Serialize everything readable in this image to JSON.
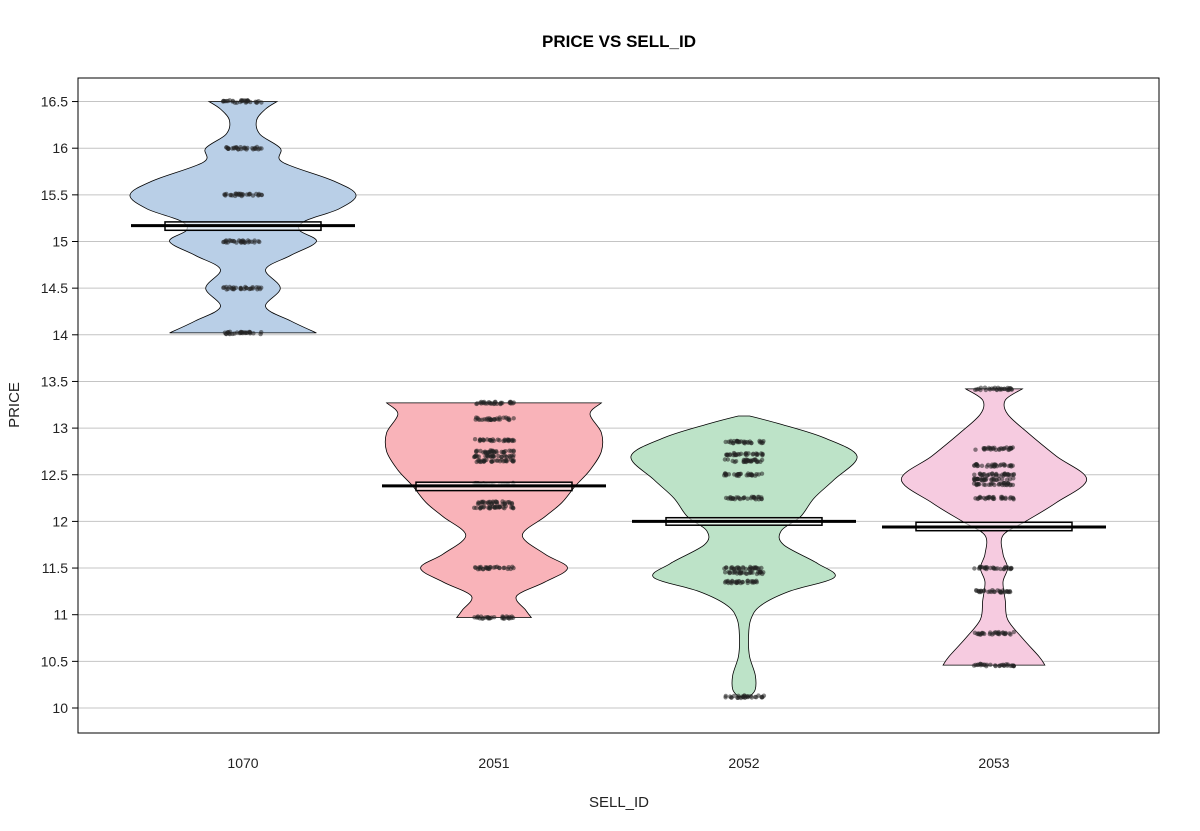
{
  "chart_data": {
    "type": "pirateplot",
    "title": "PRICE VS SELL_ID",
    "xlabel": "SELL_ID",
    "ylabel": "PRICE",
    "categories": [
      "1070",
      "2051",
      "2052",
      "2053"
    ],
    "ylim": [
      9.75,
      16.75
    ],
    "yticks": [
      10,
      10.5,
      11,
      11.5,
      12,
      12.5,
      13,
      13.5,
      14,
      14.5,
      15,
      15.5,
      16,
      16.5
    ],
    "grid": true,
    "colors": {
      "1070": "#b9cfe7",
      "2051": "#f9b3b9",
      "2052": "#bde3c8",
      "2053": "#f6cbe0"
    },
    "groups": [
      {
        "category": "1070",
        "mean": 15.17,
        "ci": [
          15.12,
          15.21
        ],
        "min": 14.02,
        "max": 16.5,
        "price_levels": [
          14.02,
          14.5,
          15.0,
          15.5,
          16.0,
          16.5
        ],
        "density": [
          [
            14.02,
            0.65
          ],
          [
            14.15,
            0.42
          ],
          [
            14.3,
            0.2
          ],
          [
            14.5,
            0.33
          ],
          [
            14.7,
            0.2
          ],
          [
            14.85,
            0.42
          ],
          [
            15.0,
            0.65
          ],
          [
            15.12,
            0.5
          ],
          [
            15.22,
            0.55
          ],
          [
            15.35,
            0.85
          ],
          [
            15.5,
            1.0
          ],
          [
            15.65,
            0.8
          ],
          [
            15.85,
            0.35
          ],
          [
            16.0,
            0.33
          ],
          [
            16.15,
            0.15
          ],
          [
            16.3,
            0.12
          ],
          [
            16.42,
            0.2
          ],
          [
            16.5,
            0.3
          ]
        ]
      },
      {
        "category": "2051",
        "mean": 12.38,
        "ci": [
          12.33,
          12.42
        ],
        "min": 10.97,
        "max": 13.27,
        "price_levels": [
          10.97,
          11.5,
          12.15,
          12.2,
          12.4,
          12.65,
          12.7,
          12.75,
          12.87,
          13.1,
          13.27
        ],
        "density": [
          [
            10.97,
            0.33
          ],
          [
            11.05,
            0.28
          ],
          [
            11.2,
            0.2
          ],
          [
            11.35,
            0.45
          ],
          [
            11.5,
            0.65
          ],
          [
            11.65,
            0.45
          ],
          [
            11.85,
            0.25
          ],
          [
            12.05,
            0.45
          ],
          [
            12.2,
            0.6
          ],
          [
            12.38,
            0.72
          ],
          [
            12.55,
            0.85
          ],
          [
            12.75,
            0.95
          ],
          [
            12.95,
            0.95
          ],
          [
            13.15,
            0.85
          ],
          [
            13.27,
            0.95
          ]
        ]
      },
      {
        "category": "2052",
        "mean": 12.0,
        "ci": [
          11.96,
          12.04
        ],
        "min": 10.12,
        "max": 13.13,
        "price_levels": [
          10.12,
          11.35,
          11.45,
          11.5,
          12.25,
          12.5,
          12.65,
          12.72,
          12.85
        ],
        "density": [
          [
            10.12,
            0.05
          ],
          [
            10.2,
            0.1
          ],
          [
            10.35,
            0.1
          ],
          [
            10.55,
            0.05
          ],
          [
            10.75,
            0.04
          ],
          [
            10.95,
            0.06
          ],
          [
            11.1,
            0.15
          ],
          [
            11.25,
            0.4
          ],
          [
            11.4,
            0.8
          ],
          [
            11.55,
            0.65
          ],
          [
            11.75,
            0.35
          ],
          [
            11.9,
            0.33
          ],
          [
            12.05,
            0.5
          ],
          [
            12.25,
            0.62
          ],
          [
            12.45,
            0.8
          ],
          [
            12.7,
            1.0
          ],
          [
            12.9,
            0.7
          ],
          [
            13.05,
            0.3
          ],
          [
            13.13,
            0.05
          ]
        ]
      },
      {
        "category": "2053",
        "mean": 11.94,
        "ci": [
          11.9,
          11.99
        ],
        "min": 10.46,
        "max": 13.42,
        "price_levels": [
          10.46,
          10.8,
          11.25,
          11.5,
          12.25,
          12.4,
          12.45,
          12.5,
          12.6,
          12.78,
          13.42
        ],
        "density": [
          [
            10.46,
            0.45
          ],
          [
            10.55,
            0.4
          ],
          [
            10.75,
            0.25
          ],
          [
            10.95,
            0.12
          ],
          [
            11.15,
            0.1
          ],
          [
            11.35,
            0.08
          ],
          [
            11.5,
            0.12
          ],
          [
            11.65,
            0.08
          ],
          [
            11.85,
            0.08
          ],
          [
            12.0,
            0.28
          ],
          [
            12.2,
            0.55
          ],
          [
            12.45,
            0.82
          ],
          [
            12.7,
            0.55
          ],
          [
            12.95,
            0.3
          ],
          [
            13.15,
            0.12
          ],
          [
            13.3,
            0.1
          ],
          [
            13.42,
            0.25
          ]
        ]
      }
    ]
  }
}
